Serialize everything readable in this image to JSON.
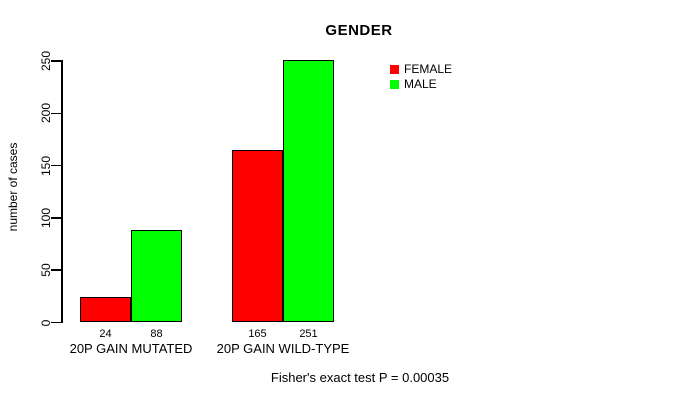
{
  "chart_data": {
    "type": "bar",
    "title": "GENDER",
    "ylabel": "number of cases",
    "xlabel": "",
    "ylim": [
      0,
      250
    ],
    "yticks": [
      0,
      50,
      100,
      150,
      200,
      250
    ],
    "categories": [
      "20P GAIN MUTATED",
      "20P GAIN WILD-TYPE"
    ],
    "series": [
      {
        "name": "FEMALE",
        "color": "#ff0000",
        "values": [
          24,
          165
        ]
      },
      {
        "name": "MALE",
        "color": "#00ff00",
        "values": [
          88,
          251
        ]
      }
    ],
    "bar_value_labels": [
      [
        "24",
        "88"
      ],
      [
        "165",
        "251"
      ]
    ],
    "legend_position": "top-right",
    "grid": false,
    "annotation": "Fisher's exact test P = 0.00035",
    "axis_color": "#000000",
    "bar_border_color": "#000000",
    "background_color": "#ffffff"
  }
}
